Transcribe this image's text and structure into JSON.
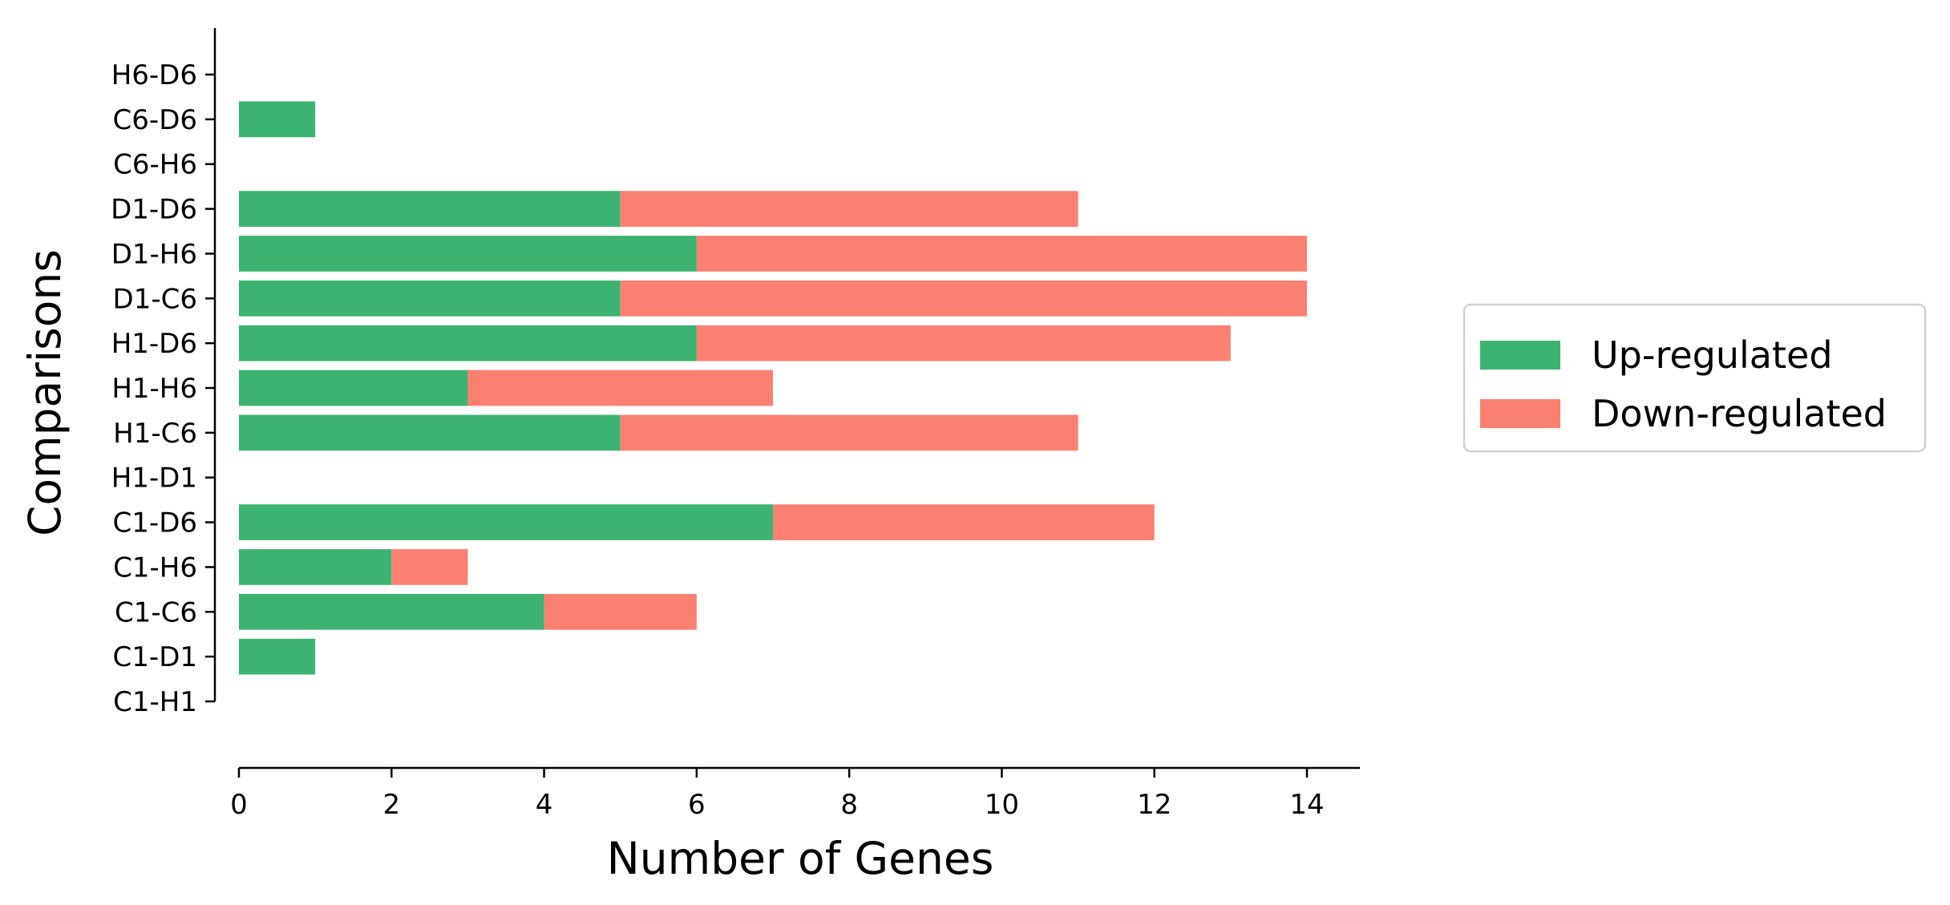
{
  "chart_data": {
    "type": "bar",
    "orientation": "horizontal",
    "stacked": true,
    "title": "",
    "xlabel": "Number of Genes",
    "ylabel": "Comparisons",
    "xlim": [
      0,
      14.7
    ],
    "x_ticks": [
      0,
      2,
      4,
      6,
      8,
      10,
      12,
      14
    ],
    "categories": [
      "C1-H1",
      "C1-D1",
      "C1-C6",
      "C1-H6",
      "C1-D6",
      "H1-D1",
      "H1-C6",
      "H1-H6",
      "H1-D6",
      "D1-C6",
      "D1-H6",
      "D1-D6",
      "C6-H6",
      "C6-D6",
      "H6-D6"
    ],
    "series": [
      {
        "name": "Up-regulated",
        "color": "#3cb371",
        "values": [
          0,
          1,
          4,
          2,
          7,
          0,
          5,
          3,
          6,
          5,
          6,
          5,
          0,
          1,
          0
        ]
      },
      {
        "name": "Down-regulated",
        "color": "#fa8072",
        "values": [
          0,
          0,
          2,
          1,
          5,
          0,
          6,
          4,
          7,
          9,
          8,
          6,
          0,
          0,
          0
        ]
      }
    ],
    "legend_position": "right",
    "grid": false
  }
}
